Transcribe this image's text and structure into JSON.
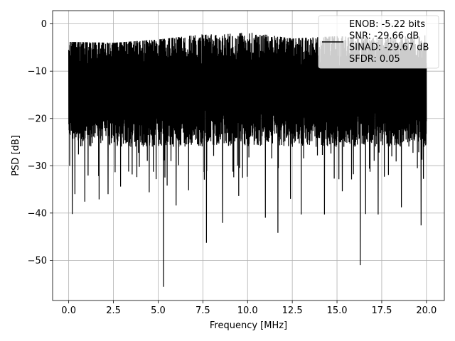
{
  "chart_data": {
    "type": "line",
    "xlabel": "Frequency [MHz]",
    "ylabel": "PSD [dB]",
    "xlim": [
      -0.9,
      21.0
    ],
    "ylim": [
      -58.5,
      2.8
    ],
    "x_ticks": [
      0.0,
      2.5,
      5.0,
      7.5,
      10.0,
      12.5,
      15.0,
      17.5,
      20.0
    ],
    "x_tick_labels": [
      "0.0",
      "2.5",
      "5.0",
      "7.5",
      "10.0",
      "12.5",
      "15.0",
      "17.5",
      "20.0"
    ],
    "y_ticks": [
      0,
      -10,
      -20,
      -30,
      -40,
      -50
    ],
    "y_tick_labels": [
      "0",
      "−10",
      "−20",
      "−30",
      "−40",
      "−50"
    ],
    "grid": true,
    "legend_placement": "upper-right",
    "series": [
      {
        "name": "ENOB: -5.22 bits\nSNR: -29.66 dB\nSINAD: -29.67 dB\nSFDR: 0.05",
        "color": "#000000",
        "x_range": [
          0.0,
          20.0
        ],
        "description_of_envelope": "noise floor",
        "envelope_top": [
          [
            0.0,
            -3.8
          ],
          [
            2.5,
            -4.0
          ],
          [
            5.0,
            -3.3
          ],
          [
            7.5,
            -2.2
          ],
          [
            10.0,
            -1.7
          ],
          [
            12.5,
            -3.1
          ],
          [
            15.0,
            -2.6
          ],
          [
            17.5,
            -3.0
          ],
          [
            20.0,
            -2.4
          ]
        ],
        "upper_band": [
          -9,
          -2
        ],
        "lower_band": [
          -26,
          -18
        ],
        "deep_nulls": [
          [
            0.2,
            -40.2
          ],
          [
            0.35,
            -36.0
          ],
          [
            0.9,
            -37.6
          ],
          [
            1.7,
            -37.1
          ],
          [
            2.2,
            -36.0
          ],
          [
            2.9,
            -34.4
          ],
          [
            4.5,
            -35.6
          ],
          [
            5.3,
            -55.6
          ],
          [
            5.5,
            -34.2
          ],
          [
            6.0,
            -38.4
          ],
          [
            6.7,
            -35.2
          ],
          [
            7.7,
            -46.3
          ],
          [
            8.6,
            -42.1
          ],
          [
            9.5,
            -36.4
          ],
          [
            11.0,
            -41.0
          ],
          [
            11.7,
            -44.2
          ],
          [
            12.4,
            -37.0
          ],
          [
            13.0,
            -40.3
          ],
          [
            14.3,
            -40.3
          ],
          [
            15.3,
            -35.4
          ],
          [
            16.3,
            -51.0
          ],
          [
            16.6,
            -40.2
          ],
          [
            17.3,
            -40.3
          ],
          [
            18.6,
            -38.8
          ],
          [
            19.7,
            -42.6
          ]
        ]
      }
    ]
  }
}
